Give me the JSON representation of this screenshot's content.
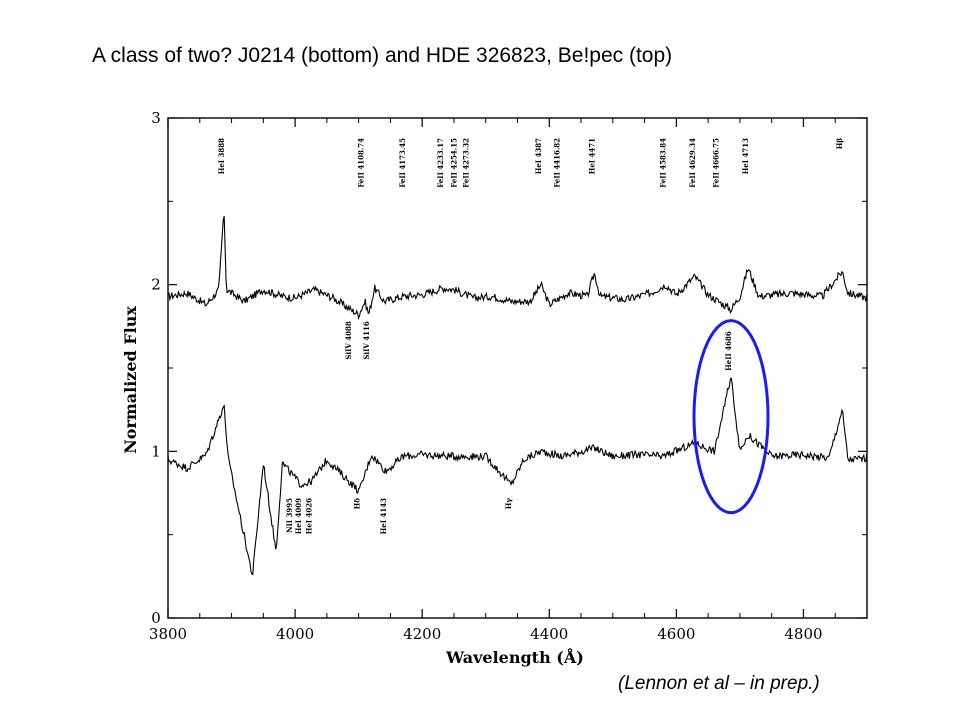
{
  "slide": {
    "title": "A class of two?   J0214 (bottom) and HDE 326823, Be!pec (top)",
    "credit": "(Lennon et al – in prep.)"
  },
  "chart_data": {
    "type": "line",
    "xlabel": "Wavelength (Å)",
    "ylabel": "Normalized Flux",
    "xlim": [
      3800,
      4900
    ],
    "ylim": [
      0,
      3
    ],
    "xticks": [
      3800,
      4000,
      4200,
      4400,
      4600,
      4800
    ],
    "yticks": [
      0,
      1,
      2,
      3
    ],
    "grid": false,
    "series": [
      {
        "name": "",
        "baseline": 1.9,
        "points": [
          [
            3800,
            1.93
          ],
          [
            3830,
            1.95
          ],
          [
            3860,
            1.88
          ],
          [
            3880,
            1.97
          ],
          [
            3888,
            2.45
          ],
          [
            3892,
            1.97
          ],
          [
            3920,
            1.9
          ],
          [
            3950,
            1.97
          ],
          [
            3980,
            1.93
          ],
          [
            4000,
            1.92
          ],
          [
            4030,
            1.97
          ],
          [
            4060,
            1.92
          ],
          [
            4080,
            1.87
          ],
          [
            4100,
            1.82
          ],
          [
            4110,
            1.9
          ],
          [
            4116,
            1.82
          ],
          [
            4125,
            1.98
          ],
          [
            4140,
            1.9
          ],
          [
            4170,
            1.93
          ],
          [
            4200,
            1.94
          ],
          [
            4233,
            1.98
          ],
          [
            4250,
            1.97
          ],
          [
            4280,
            1.92
          ],
          [
            4310,
            1.93
          ],
          [
            4340,
            1.9
          ],
          [
            4370,
            1.9
          ],
          [
            4387,
            2.0
          ],
          [
            4400,
            1.88
          ],
          [
            4430,
            1.95
          ],
          [
            4460,
            1.93
          ],
          [
            4471,
            2.07
          ],
          [
            4480,
            1.93
          ],
          [
            4520,
            1.91
          ],
          [
            4560,
            1.95
          ],
          [
            4583,
            2.0
          ],
          [
            4600,
            1.94
          ],
          [
            4629,
            2.05
          ],
          [
            4650,
            1.94
          ],
          [
            4686,
            1.85
          ],
          [
            4700,
            1.93
          ],
          [
            4713,
            2.1
          ],
          [
            4730,
            1.93
          ],
          [
            4780,
            1.95
          ],
          [
            4830,
            1.93
          ],
          [
            4861,
            2.08
          ],
          [
            4870,
            1.95
          ],
          [
            4900,
            1.92
          ]
        ]
      },
      {
        "name": "",
        "baseline": 0.95,
        "points": [
          [
            3800,
            0.95
          ],
          [
            3830,
            0.9
          ],
          [
            3860,
            0.98
          ],
          [
            3888,
            1.28
          ],
          [
            3895,
            0.95
          ],
          [
            3933,
            0.25
          ],
          [
            3950,
            0.93
          ],
          [
            3970,
            0.4
          ],
          [
            3980,
            0.93
          ],
          [
            4009,
            0.8
          ],
          [
            4026,
            0.82
          ],
          [
            4050,
            0.95
          ],
          [
            4101,
            0.76
          ],
          [
            4120,
            0.98
          ],
          [
            4143,
            0.88
          ],
          [
            4170,
            0.97
          ],
          [
            4200,
            0.98
          ],
          [
            4250,
            0.97
          ],
          [
            4300,
            0.97
          ],
          [
            4340,
            0.8
          ],
          [
            4360,
            0.95
          ],
          [
            4387,
            1.0
          ],
          [
            4420,
            0.97
          ],
          [
            4471,
            1.02
          ],
          [
            4500,
            0.97
          ],
          [
            4540,
            0.98
          ],
          [
            4580,
            0.97
          ],
          [
            4629,
            1.05
          ],
          [
            4660,
            1.0
          ],
          [
            4686,
            1.45
          ],
          [
            4700,
            1.0
          ],
          [
            4713,
            1.1
          ],
          [
            4750,
            0.97
          ],
          [
            4800,
            0.98
          ],
          [
            4840,
            0.96
          ],
          [
            4861,
            1.25
          ],
          [
            4870,
            0.95
          ],
          [
            4900,
            0.96
          ]
        ]
      }
    ],
    "annotations": [
      {
        "text": "HeI 3888",
        "x": 3888,
        "y": 2.88
      },
      {
        "text": "FeII 4108.74",
        "x": 4108,
        "y": 2.88
      },
      {
        "text": "FeII 4173.45",
        "x": 4173,
        "y": 2.88
      },
      {
        "text": "FeII 4233.17",
        "x": 4233,
        "y": 2.88
      },
      {
        "text": "FeII 4254.15",
        "x": 4254,
        "y": 2.88
      },
      {
        "text": "FeII 4273.32",
        "x": 4273,
        "y": 2.88
      },
      {
        "text": "HeI 4387",
        "x": 4387,
        "y": 2.88
      },
      {
        "text": "FeII 4416.82",
        "x": 4416,
        "y": 2.88
      },
      {
        "text": "HeI 4471",
        "x": 4471,
        "y": 2.88
      },
      {
        "text": "FeII 4583.84",
        "x": 4583,
        "y": 2.88
      },
      {
        "text": "FeII 4629.34",
        "x": 4629,
        "y": 2.88
      },
      {
        "text": "FeII 4666.75",
        "x": 4666,
        "y": 2.88
      },
      {
        "text": "HeI 4713",
        "x": 4713,
        "y": 2.88
      },
      {
        "text": "Hβ",
        "x": 4861,
        "y": 2.88
      },
      {
        "text": "SiIV 4088",
        "x": 4088,
        "y": 1.78
      },
      {
        "text": "SiIV 4116",
        "x": 4116,
        "y": 1.78
      },
      {
        "text": "HeII 4686",
        "x": 4686,
        "y": 1.72
      },
      {
        "text": "NII 3995",
        "x": 3995,
        "y": 0.72
      },
      {
        "text": "HeI 4009",
        "x": 4009,
        "y": 0.72
      },
      {
        "text": "HeI 4026",
        "x": 4026,
        "y": 0.72
      },
      {
        "text": "Hδ",
        "x": 4101,
        "y": 0.72
      },
      {
        "text": "HeI 4143",
        "x": 4143,
        "y": 0.72
      },
      {
        "text": "Hγ",
        "x": 4340,
        "y": 0.72
      }
    ],
    "highlight": {
      "shape": "ellipse",
      "color": "#1a1aff",
      "x": 4686,
      "y": 1.1
    }
  }
}
